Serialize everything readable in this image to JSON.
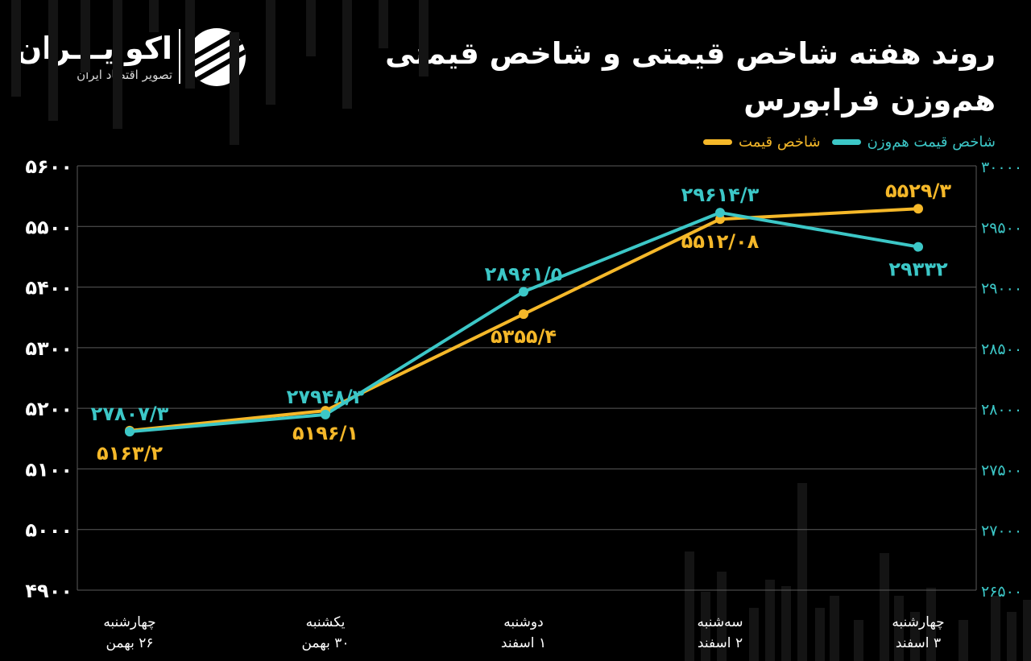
{
  "brand": {
    "name": "اکوایـــران",
    "tagline": "تصویر اقتصاد ایران"
  },
  "colors": {
    "background": "#000000",
    "price_index": "#f5b829",
    "equal_weight_index": "#3cc7c7",
    "grid": "#5a5a5a",
    "text": "#ffffff"
  },
  "chart_data": {
    "type": "line",
    "title": "روند هفته شاخص قیمتی و شاخص قیمتی هم‌وزن فرابورس",
    "categories": [
      [
        "چهارشنبه",
        "۲۶ بهمن"
      ],
      [
        "یکشنبه",
        "۳۰ بهمن"
      ],
      [
        "دوشنبه",
        "۱ اسفند"
      ],
      [
        "سه‌شنبه",
        "۲ اسفند"
      ],
      [
        "چهارشنبه",
        "۳ اسفند"
      ]
    ],
    "left_axis": {
      "min": 4900,
      "max": 5600,
      "ticks": [
        5600,
        5500,
        5400,
        5300,
        5200,
        5100,
        5000,
        4900
      ],
      "tick_labels": [
        "۵۶۰۰",
        "۵۵۰۰",
        "۵۴۰۰",
        "۵۳۰۰",
        "۵۲۰۰",
        "۵۱۰۰",
        "۵۰۰۰",
        "۴۹۰۰"
      ]
    },
    "right_axis": {
      "min": 26500,
      "max": 30000,
      "ticks": [
        30000,
        29500,
        29000,
        28500,
        28000,
        27500,
        27000,
        26500
      ],
      "tick_labels": [
        "۳۰۰۰۰",
        "۲۹۵۰۰",
        "۲۹۰۰۰",
        "۲۸۵۰۰",
        "۲۸۰۰۰",
        "۲۷۵۰۰",
        "۲۷۰۰۰",
        "۲۶۵۰۰"
      ]
    },
    "grid": true,
    "legend_position": "top-right",
    "series": [
      {
        "name": "شاخص قیمت",
        "axis": "left",
        "color": "#f5b829",
        "values": [
          5163.2,
          5196.1,
          5355.4,
          5512.08,
          5529.3
        ],
        "labels": [
          "۵۱۶۳/۲",
          "۵۱۹۶/۱",
          "۵۳۵۵/۴",
          "۵۵۱۲/۰۸",
          "۵۵۲۹/۳"
        ],
        "label_pos": [
          "below",
          "below",
          "below",
          "below",
          "above"
        ]
      },
      {
        "name": "شاخص قیمت هم‌وزن",
        "axis": "right",
        "color": "#3cc7c7",
        "values": [
          27807.3,
          27948.3,
          28961.5,
          29614.3,
          29332
        ],
        "labels": [
          "۲۷۸۰۷/۳",
          "۲۷۹۴۸/۳",
          "۲۸۹۶۱/۵",
          "۲۹۶۱۴/۳",
          "۲۹۳۳۲"
        ],
        "label_pos": [
          "above",
          "above",
          "above",
          "above",
          "below"
        ]
      }
    ]
  }
}
